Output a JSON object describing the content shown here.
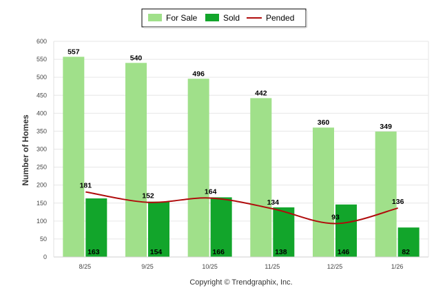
{
  "chart_data": {
    "type": "bar",
    "categories": [
      "8/25",
      "9/25",
      "10/25",
      "11/25",
      "12/25",
      "1/26"
    ],
    "series": [
      {
        "name": "For Sale",
        "kind": "bar",
        "color": "#a0e08a",
        "values": [
          557,
          540,
          496,
          442,
          360,
          349
        ]
      },
      {
        "name": "Sold",
        "kind": "bar",
        "color": "#12a52b",
        "values": [
          163,
          154,
          166,
          138,
          146,
          82
        ]
      },
      {
        "name": "Pended",
        "kind": "line",
        "color": "#b00c0c",
        "values": [
          181,
          152,
          164,
          134,
          93,
          136
        ]
      }
    ],
    "ylabel": "Number of Homes",
    "xlabel": "",
    "ylim": [
      0,
      600
    ],
    "yticks": [
      0,
      50,
      100,
      150,
      200,
      250,
      300,
      350,
      400,
      450,
      500,
      550,
      600
    ],
    "grid": true,
    "legend_position": "top-center"
  },
  "footer": {
    "copyright": "Copyright © Trendgraphix, Inc."
  }
}
